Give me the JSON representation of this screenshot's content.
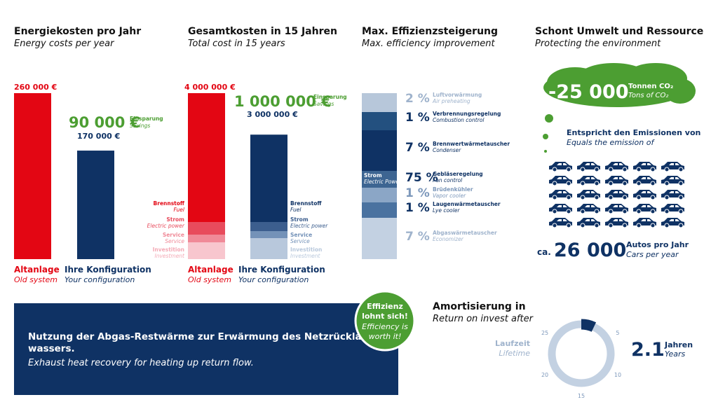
{
  "energy_costs": {
    "title": "Energiekosten pro Jahr",
    "subtitle": "Energy costs per year",
    "old": {
      "value": 260000,
      "label": "260 000 €",
      "name": "Altanlage",
      "name_en": "Old system"
    },
    "new": {
      "value": 170000,
      "label": "170 000 €",
      "name": "Ihre Konfiguration",
      "name_en": "Your configuration"
    },
    "savings": {
      "value": 90000,
      "label": "90 000 €",
      "name": "Einsparung",
      "name_en": "Savings"
    }
  },
  "total_costs": {
    "title": "Gesamtkosten in 15 Jahren",
    "subtitle": "Total cost in 15 years",
    "old": {
      "value": 4000000,
      "label": "4 000 000 €",
      "name": "Altanlage",
      "name_en": "Old system"
    },
    "new": {
      "value": 3000000,
      "label": "3 000 000 €",
      "name": "Ihre Konfiguration",
      "name_en": "Your configuration"
    },
    "savings": {
      "value": 1000000,
      "label": "1 000 000 €",
      "name": "Einsparung",
      "name_en": "Savings"
    },
    "components": [
      {
        "name": "Brennstoff",
        "name_en": "Fuel"
      },
      {
        "name": "Strom",
        "name_en": "Electric power"
      },
      {
        "name": "Service",
        "name_en": "Service"
      },
      {
        "name": "Investition",
        "name_en": "Investment"
      }
    ]
  },
  "efficiency": {
    "title": "Max. Effizienzsteigerung",
    "subtitle": "Max. efficiency improvement",
    "group": "Strom",
    "group_en": "Electric Power",
    "items": [
      {
        "value": 2,
        "label": "2 %",
        "name": "Luftvorwärmung",
        "name_en": "Air preheating"
      },
      {
        "value": 1,
        "label": "1 %",
        "name": "Verbrennungsregelung",
        "name_en": "Combustion control"
      },
      {
        "value": 7,
        "label": "7 %",
        "name": "Brennwertwärmetauscher",
        "name_en": "Condenser"
      },
      {
        "value": 75,
        "label": "75 %",
        "name": "Gebläseregelung",
        "name_en": "Fan control"
      },
      {
        "value": 1,
        "label": "1 %",
        "name": "Brüdenkühler",
        "name_en": "Vapor cooler"
      },
      {
        "value": 1,
        "label": "1 %",
        "name": "Laugenwärmetauscher",
        "name_en": "Lye cooler"
      },
      {
        "value": 7,
        "label": "7 %",
        "name": "Abgaswärmetauscher",
        "name_en": "Economizer"
      }
    ]
  },
  "environment": {
    "title": "Schont Umwelt und Ressourcen",
    "subtitle": "Protecting the environment",
    "co2": {
      "value": -25000,
      "label": "-25 000",
      "unit": "Tonnen CO₂",
      "unit_en": "Tons of CO₂"
    },
    "equals": "Entspricht den Emissionen von",
    "equals_en": "Equals the emission of",
    "cars": {
      "prefix": "ca.",
      "value": 26000,
      "label": "26 000",
      "unit": "Autos pro Jahr",
      "unit_en": "Cars per year"
    }
  },
  "banner": {
    "title_lines": [
      "Nutzung der Abgas-Restwärme zur Erwärmung des Netzrücklauf-",
      "wassers."
    ],
    "subtitle": "Exhaust heat recovery for heating up return flow."
  },
  "badge": {
    "lines": [
      "Effizienz",
      "lohnt sich!"
    ],
    "lines_en": [
      "Efficiency is",
      "worth it!"
    ]
  },
  "amortization": {
    "title": "Amortisierung in",
    "subtitle": "Return on invest after",
    "ring_label": "Laufzeit",
    "ring_label_en": "Lifetime",
    "years": 2.1,
    "unit": "Jahren",
    "unit_en": "Years",
    "ticks": [
      5,
      10,
      15,
      20,
      25
    ]
  }
}
